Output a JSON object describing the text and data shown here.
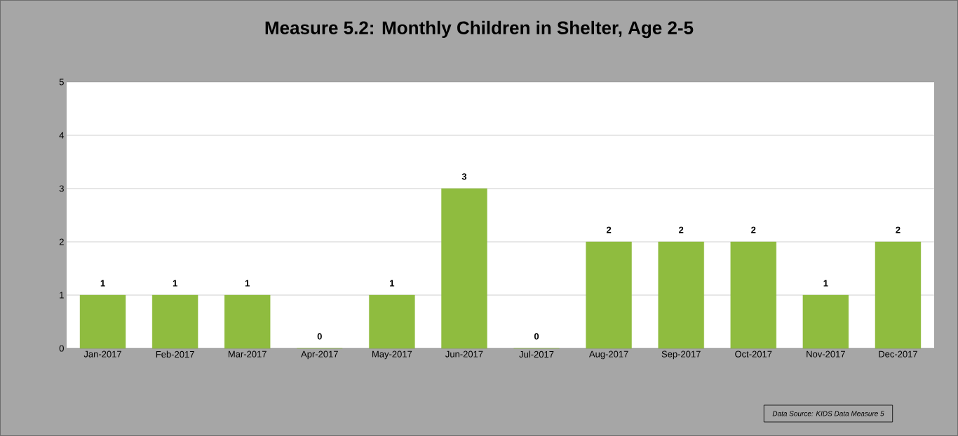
{
  "chart_data": {
    "type": "bar",
    "title": "Measure 5.2: Monthly Children in Shelter, Age 2-5",
    "categories": [
      "Jan-2017",
      "Feb-2017",
      "Mar-2017",
      "Apr-2017",
      "May-2017",
      "Jun-2017",
      "Jul-2017",
      "Aug-2017",
      "Sep-2017",
      "Oct-2017",
      "Nov-2017",
      "Dec-2017"
    ],
    "values": [
      1,
      1,
      1,
      0,
      1,
      3,
      0,
      2,
      2,
      2,
      1,
      2
    ],
    "color": "#8fbc3f",
    "ylim": [
      0,
      5
    ],
    "yticks": [
      0,
      1,
      2,
      3,
      4,
      5
    ],
    "grid": "y",
    "data_labels": true,
    "annotations": [
      "Data Source: KIDS Data  Measure 5"
    ]
  }
}
